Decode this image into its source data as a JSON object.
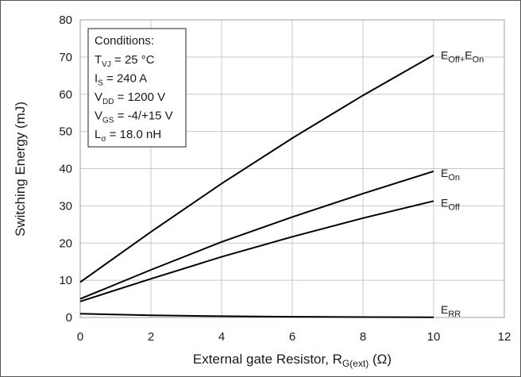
{
  "chart_data": {
    "type": "line",
    "xlabel": "External gate Resistor, R",
    "xlabel_sub": "G(ext)",
    "xlabel_unit": " (Ω)",
    "ylabel": "Switching Energy (mJ)",
    "xlim": [
      0,
      12
    ],
    "ylim": [
      0,
      80
    ],
    "xticks": [
      "0",
      "2",
      "4",
      "6",
      "8",
      "10",
      "12"
    ],
    "yticks": [
      "0",
      "10",
      "20",
      "30",
      "40",
      "50",
      "60",
      "70",
      "80"
    ],
    "grid": true,
    "legend": "none",
    "conditions": {
      "heading": "Conditions:",
      "lines": [
        {
          "pre": "T",
          "sub": "VJ",
          "post": " = 25 °C"
        },
        {
          "pre": "I",
          "sub": "S",
          "post": " = 240 A"
        },
        {
          "pre": "V",
          "sub": "DD",
          "post": " = 1200 V"
        },
        {
          "pre": "V",
          "sub": "GS",
          "post": " = -4/+15 V"
        },
        {
          "pre": "L",
          "sub": "σ",
          "post": " = 18.0 nH"
        }
      ]
    },
    "series": [
      {
        "name": "E_Off+E_On",
        "label_parts": [
          {
            "t": "E"
          },
          {
            "t": "Off+",
            "sub": true
          },
          {
            "t": "E"
          },
          {
            "t": "On",
            "sub": true
          }
        ],
        "x": [
          0,
          2,
          4,
          6,
          8,
          10
        ],
        "y": [
          9.5,
          23.0,
          36.0,
          48.2,
          59.7,
          70.5
        ]
      },
      {
        "name": "E_On",
        "label_parts": [
          {
            "t": "E"
          },
          {
            "t": "On",
            "sub": true
          }
        ],
        "x": [
          0,
          2,
          4,
          6,
          8,
          10
        ],
        "y": [
          5.0,
          12.8,
          20.3,
          27.0,
          33.3,
          39.3
        ]
      },
      {
        "name": "E_Off",
        "label_parts": [
          {
            "t": "E"
          },
          {
            "t": "Off",
            "sub": true
          }
        ],
        "x": [
          0,
          2,
          4,
          6,
          8,
          10
        ],
        "y": [
          4.3,
          10.4,
          16.3,
          21.7,
          26.7,
          31.3
        ]
      },
      {
        "name": "E_RR",
        "label_parts": [
          {
            "t": "E"
          },
          {
            "t": "RR",
            "sub": true
          }
        ],
        "x": [
          0,
          2,
          4,
          6,
          8,
          10
        ],
        "y": [
          1.0,
          0.6,
          0.35,
          0.2,
          0.1,
          0.05
        ]
      }
    ]
  }
}
